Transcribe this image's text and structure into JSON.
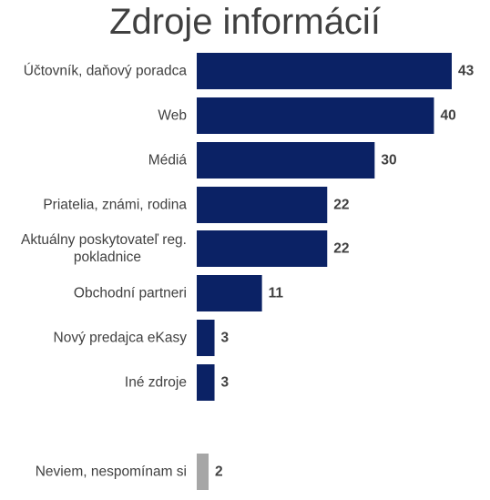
{
  "chart_data": {
    "type": "bar",
    "orientation": "horizontal",
    "title": "Zdroje informácií",
    "categories": [
      "Účtovník, daňový poradca",
      "Web",
      "Médiá",
      "Priatelia, známi, rodina",
      "Aktuálny poskytovateľ reg. pokladnice",
      "Obchodní partneri",
      "Nový predajca eKasy",
      "Iné zdroje",
      "Neviem, nespomínam si"
    ],
    "category_lines": [
      [
        "Účtovník, daňový poradca"
      ],
      [
        "Web"
      ],
      [
        "Médiá"
      ],
      [
        "Priatelia, známi, rodina"
      ],
      [
        "Aktuálny poskytovateľ reg.",
        "pokladnice"
      ],
      [
        "Obchodní partneri"
      ],
      [
        "Nový predajca eKasy"
      ],
      [
        "Iné zdroje"
      ],
      [
        "Neviem, nespomínam si"
      ]
    ],
    "values": [
      43,
      40,
      30,
      22,
      22,
      11,
      3,
      3,
      2
    ],
    "value_labels": [
      "43",
      "40",
      "30",
      "22",
      "22",
      "11",
      "3",
      "3",
      "2"
    ],
    "colors": {
      "primary": "#0b2265",
      "muted": "#a6a6a6",
      "title": "#404040",
      "label": "#404040",
      "value_label": "#404040"
    },
    "bar_colors": [
      "primary",
      "primary",
      "primary",
      "primary",
      "primary",
      "primary",
      "primary",
      "primary",
      "muted"
    ],
    "xlim": [
      0,
      43
    ],
    "grid": false,
    "legend": "none",
    "axes_visible": false
  }
}
